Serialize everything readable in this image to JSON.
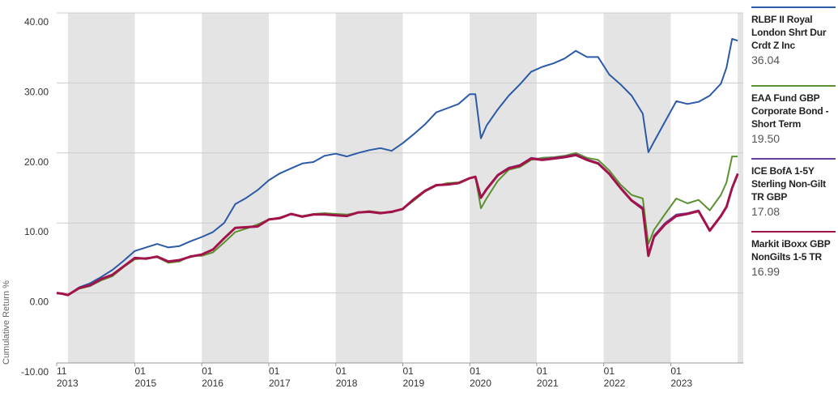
{
  "chart_data": {
    "type": "line",
    "y_label": "Cumulative Return %",
    "x": [
      "2013-11",
      "2013-12",
      "2014-01",
      "2014-03",
      "2014-05",
      "2014-07",
      "2014-09",
      "2014-11",
      "2015-01",
      "2015-03",
      "2015-05",
      "2015-07",
      "2015-09",
      "2015-11",
      "2016-01",
      "2016-03",
      "2016-05",
      "2016-07",
      "2016-09",
      "2016-11",
      "2017-01",
      "2017-03",
      "2017-05",
      "2017-07",
      "2017-09",
      "2017-11",
      "2018-01",
      "2018-03",
      "2018-05",
      "2018-07",
      "2018-09",
      "2018-11",
      "2019-01",
      "2019-03",
      "2019-05",
      "2019-07",
      "2019-09",
      "2019-11",
      "2020-01",
      "2020-02",
      "2020-03",
      "2020-04",
      "2020-06",
      "2020-08",
      "2020-10",
      "2020-12",
      "2021-02",
      "2021-04",
      "2021-06",
      "2021-08",
      "2021-10",
      "2021-12",
      "2022-02",
      "2022-04",
      "2022-06",
      "2022-08",
      "2022-09",
      "2022-10",
      "2022-12",
      "2023-02",
      "2023-04",
      "2023-06",
      "2023-08",
      "2023-10",
      "2023-11",
      "2023-12",
      "2024-01"
    ],
    "xlim": [
      "2013-11",
      "2024-02"
    ],
    "xticks": [
      {
        "value": "2013-11",
        "label": "11 2013"
      },
      {
        "value": "2015-01",
        "label": "01 2015"
      },
      {
        "value": "2016-01",
        "label": "01 2016"
      },
      {
        "value": "2017-01",
        "label": "01 2017"
      },
      {
        "value": "2018-01",
        "label": "01 2018"
      },
      {
        "value": "2019-01",
        "label": "01 2019"
      },
      {
        "value": "2020-01",
        "label": "01 2020"
      },
      {
        "value": "2021-01",
        "label": "01 2021"
      },
      {
        "value": "2022-01",
        "label": "01 2022"
      },
      {
        "value": "2023-01",
        "label": "01 2023"
      }
    ],
    "ylim": [
      -10,
      40
    ],
    "yticks": [
      {
        "value": -10,
        "label": "-10.00"
      },
      {
        "value": 0,
        "label": "0.00"
      },
      {
        "value": 10,
        "label": "10.00"
      },
      {
        "value": 20,
        "label": "20.00"
      },
      {
        "value": 30,
        "label": "30.00"
      },
      {
        "value": 40,
        "label": "40.00"
      }
    ],
    "grid": true,
    "series": [
      {
        "name": "RLBF II Royal London Shrt Dur Crdt Z Inc",
        "color": "#2b5aa6",
        "legend_value": "36.04",
        "values": [
          0,
          -0.1,
          -0.3,
          0.8,
          1.4,
          2.3,
          3.3,
          4.6,
          6.0,
          6.5,
          7.0,
          6.5,
          6.7,
          7.4,
          8.0,
          8.7,
          10.0,
          12.7,
          13.6,
          14.7,
          16.1,
          17.1,
          17.8,
          18.5,
          18.7,
          19.6,
          19.9,
          19.5,
          20.0,
          20.4,
          20.7,
          20.3,
          21.4,
          22.7,
          24.1,
          25.8,
          26.4,
          27.0,
          28.4,
          28.4,
          22.1,
          23.9,
          26.2,
          28.2,
          29.8,
          31.6,
          32.3,
          32.8,
          33.5,
          34.6,
          33.7,
          33.7,
          31.2,
          29.8,
          28.2,
          25.6,
          20.1,
          21.6,
          24.5,
          27.4,
          27.0,
          27.3,
          28.2,
          29.9,
          32.2,
          36.3,
          36.04
        ]
      },
      {
        "name": "EAA Fund GBP Corporate Bond - Short Term",
        "color": "#5b9131",
        "legend_value": "19.50",
        "values": [
          0,
          -0.1,
          -0.3,
          0.6,
          1.0,
          1.8,
          2.4,
          3.7,
          4.8,
          5.0,
          5.1,
          4.3,
          4.5,
          5.3,
          5.3,
          5.8,
          7.2,
          8.7,
          9.2,
          9.8,
          10.5,
          10.8,
          11.3,
          11.0,
          11.3,
          11.4,
          11.3,
          11.2,
          11.5,
          11.7,
          11.5,
          11.5,
          12.0,
          13.2,
          14.5,
          15.3,
          15.7,
          15.8,
          16.4,
          16.6,
          12.1,
          13.5,
          16.0,
          17.6,
          18.0,
          19.0,
          19.3,
          19.4,
          19.6,
          20.0,
          19.3,
          19.0,
          17.5,
          15.5,
          14.0,
          13.5,
          7.0,
          9.0,
          11.3,
          13.5,
          12.8,
          13.3,
          11.8,
          14.0,
          15.8,
          19.5,
          19.5
        ]
      },
      {
        "name": "ICE BofA 1-5Y Sterling Non-Gilt TR GBP",
        "color": "#6a3fa0",
        "legend_value": "17.08",
        "values": [
          0,
          -0.1,
          -0.3,
          0.7,
          1.1,
          2.0,
          2.6,
          3.8,
          5.0,
          4.9,
          5.2,
          4.5,
          4.7,
          5.2,
          5.5,
          6.2,
          7.8,
          9.3,
          9.4,
          9.5,
          10.5,
          10.7,
          11.3,
          10.9,
          11.2,
          11.2,
          11.1,
          11.0,
          11.5,
          11.6,
          11.4,
          11.6,
          12.0,
          13.4,
          14.6,
          15.4,
          15.5,
          15.7,
          16.4,
          16.6,
          13.7,
          14.9,
          16.9,
          17.9,
          18.3,
          19.3,
          19.1,
          19.3,
          19.5,
          19.8,
          19.1,
          18.6,
          17.1,
          15.1,
          13.3,
          12.2,
          5.6,
          8.2,
          10.0,
          11.2,
          11.4,
          11.8,
          9.0,
          11.1,
          12.4,
          15.1,
          17.08
        ]
      },
      {
        "name": "Markit iBoxx GBP NonGilts 1-5 TR",
        "color": "#a3134b",
        "legend_value": "16.99",
        "values": [
          0,
          -0.1,
          -0.3,
          0.7,
          1.1,
          2.0,
          2.6,
          3.8,
          5.0,
          4.9,
          5.2,
          4.5,
          4.7,
          5.2,
          5.5,
          6.2,
          7.8,
          9.3,
          9.4,
          9.5,
          10.5,
          10.7,
          11.3,
          10.9,
          11.2,
          11.2,
          11.1,
          11.0,
          11.5,
          11.6,
          11.4,
          11.6,
          12.0,
          13.4,
          14.6,
          15.4,
          15.5,
          15.7,
          16.4,
          16.6,
          13.6,
          14.8,
          16.8,
          17.8,
          18.2,
          19.2,
          19.0,
          19.2,
          19.4,
          19.7,
          19.0,
          18.5,
          17.0,
          15.0,
          13.2,
          12.0,
          5.3,
          8.0,
          9.8,
          11.0,
          11.3,
          11.7,
          8.9,
          11.0,
          12.3,
          15.0,
          16.99
        ]
      }
    ]
  }
}
